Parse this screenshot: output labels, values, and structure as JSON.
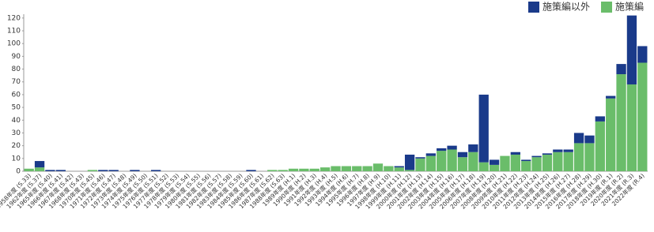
{
  "chart_data": {
    "type": "stacked-bar",
    "categories": [
      "1958年度 (S.33)",
      "1962年度 (S.37)",
      "1965年度 (S.40)",
      "1966年度 (S.41)",
      "1967年度 (S.42)",
      "1968年度 (S.43)",
      "1970年度 (S.45)",
      "1971年度 (S.46)",
      "1972年度 (S.47)",
      "1973年度 (S.48)",
      "1974年度 (S.49)",
      "1975年度 (S.50)",
      "1976年度 (S.51)",
      "1977年度 (S.52)",
      "1978年度 (S.53)",
      "1979年度 (S.54)",
      "1980年度 (S.55)",
      "1981年度 (S.56)",
      "1982年度 (S.57)",
      "1983年度 (S.58)",
      "1984年度 (S.59)",
      "1985年度 (S.60)",
      "1986年度 (S.61)",
      "1987年度 (S.62)",
      "1988年度 (S.63)",
      "1989年度 (H.1)",
      "1990年度 (H.2)",
      "1991年度 (H.3)",
      "1992年度 (H.4)",
      "1993年度 (H.5)",
      "1994年度 (H.6)",
      "1995年度 (H.7)",
      "1996年度 (H.8)",
      "1997年度 (H.9)",
      "1998年度 (H.10)",
      "1999年度 (H.11)",
      "2000年度 (H.12)",
      "2001年度 (H.13)",
      "2002年度 (H.14)",
      "2003年度 (H.15)",
      "2004年度 (H.16)",
      "2005年度 (H.17)",
      "2006年度 (H.18)",
      "2007年度 (H.19)",
      "2008年度 (H.20)",
      "2009年度 (H.21)",
      "2010年度 (H.22)",
      "2011年度 (H.23)",
      "2012年度 (H.24)",
      "2013年度 (H.25)",
      "2014年度 (H.26)",
      "2015年度 (H.27)",
      "2016年度 (H.28)",
      "2017年度 (H.29)",
      "2018年度 (H.30)",
      "2019年度 (R.1)",
      "2020年度 (R.2)",
      "2021年度 (R.3)",
      "2022年度 (R.4)"
    ],
    "series": [
      {
        "name": "施策編",
        "color": "#6abd6a",
        "values": [
          2,
          3,
          0,
          0,
          0,
          0,
          1,
          0,
          0,
          0,
          0,
          0,
          0,
          0,
          0,
          0,
          0,
          0,
          0,
          0,
          0,
          0,
          0,
          1,
          1,
          2,
          2,
          2,
          3,
          4,
          4,
          4,
          4,
          6,
          4,
          3,
          1,
          10,
          12,
          16,
          17,
          11,
          15,
          7,
          5,
          12,
          13,
          8,
          11,
          13,
          15,
          15,
          22,
          22,
          39,
          57,
          76,
          68,
          85
        ]
      },
      {
        "name": "施策編以外",
        "color": "#1a3a8a",
        "values": [
          0,
          5,
          1,
          1,
          0,
          0,
          0,
          1,
          1,
          0,
          1,
          0,
          1,
          0,
          0,
          0,
          0,
          0,
          0,
          0,
          0,
          1,
          0,
          0,
          0,
          0,
          0,
          0,
          0,
          0,
          0,
          0,
          0,
          0,
          0,
          1,
          12,
          1,
          2,
          2,
          3,
          4,
          6,
          53,
          4,
          0,
          2,
          1,
          1,
          1,
          2,
          2,
          8,
          6,
          4,
          2,
          8,
          54,
          13
        ]
      }
    ],
    "ylim": [
      0,
      123
    ],
    "yticks": [
      0,
      10,
      20,
      30,
      40,
      50,
      60,
      70,
      80,
      90,
      100,
      110,
      120
    ],
    "grid": false
  }
}
